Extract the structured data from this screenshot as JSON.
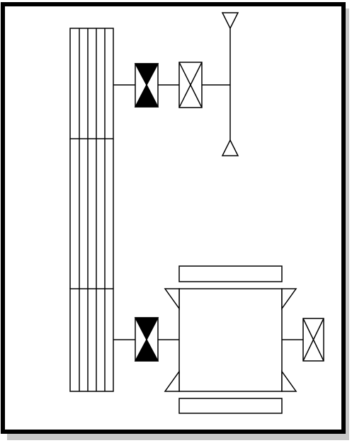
{
  "colors": {
    "background": "#ffffff",
    "frame": "#000000",
    "frame_shadow": "#9a9a9a",
    "line": "#000000",
    "fill_dark": "#000000",
    "fill_light": "#ffffff"
  },
  "diagram": {
    "components": [
      "belt-drive-pulleys",
      "upper-bearing-filled",
      "upper-bearing-open",
      "upper-shaft-tee",
      "lower-bearing-filled",
      "motor-housing",
      "motor-end-bearing-open"
    ]
  }
}
